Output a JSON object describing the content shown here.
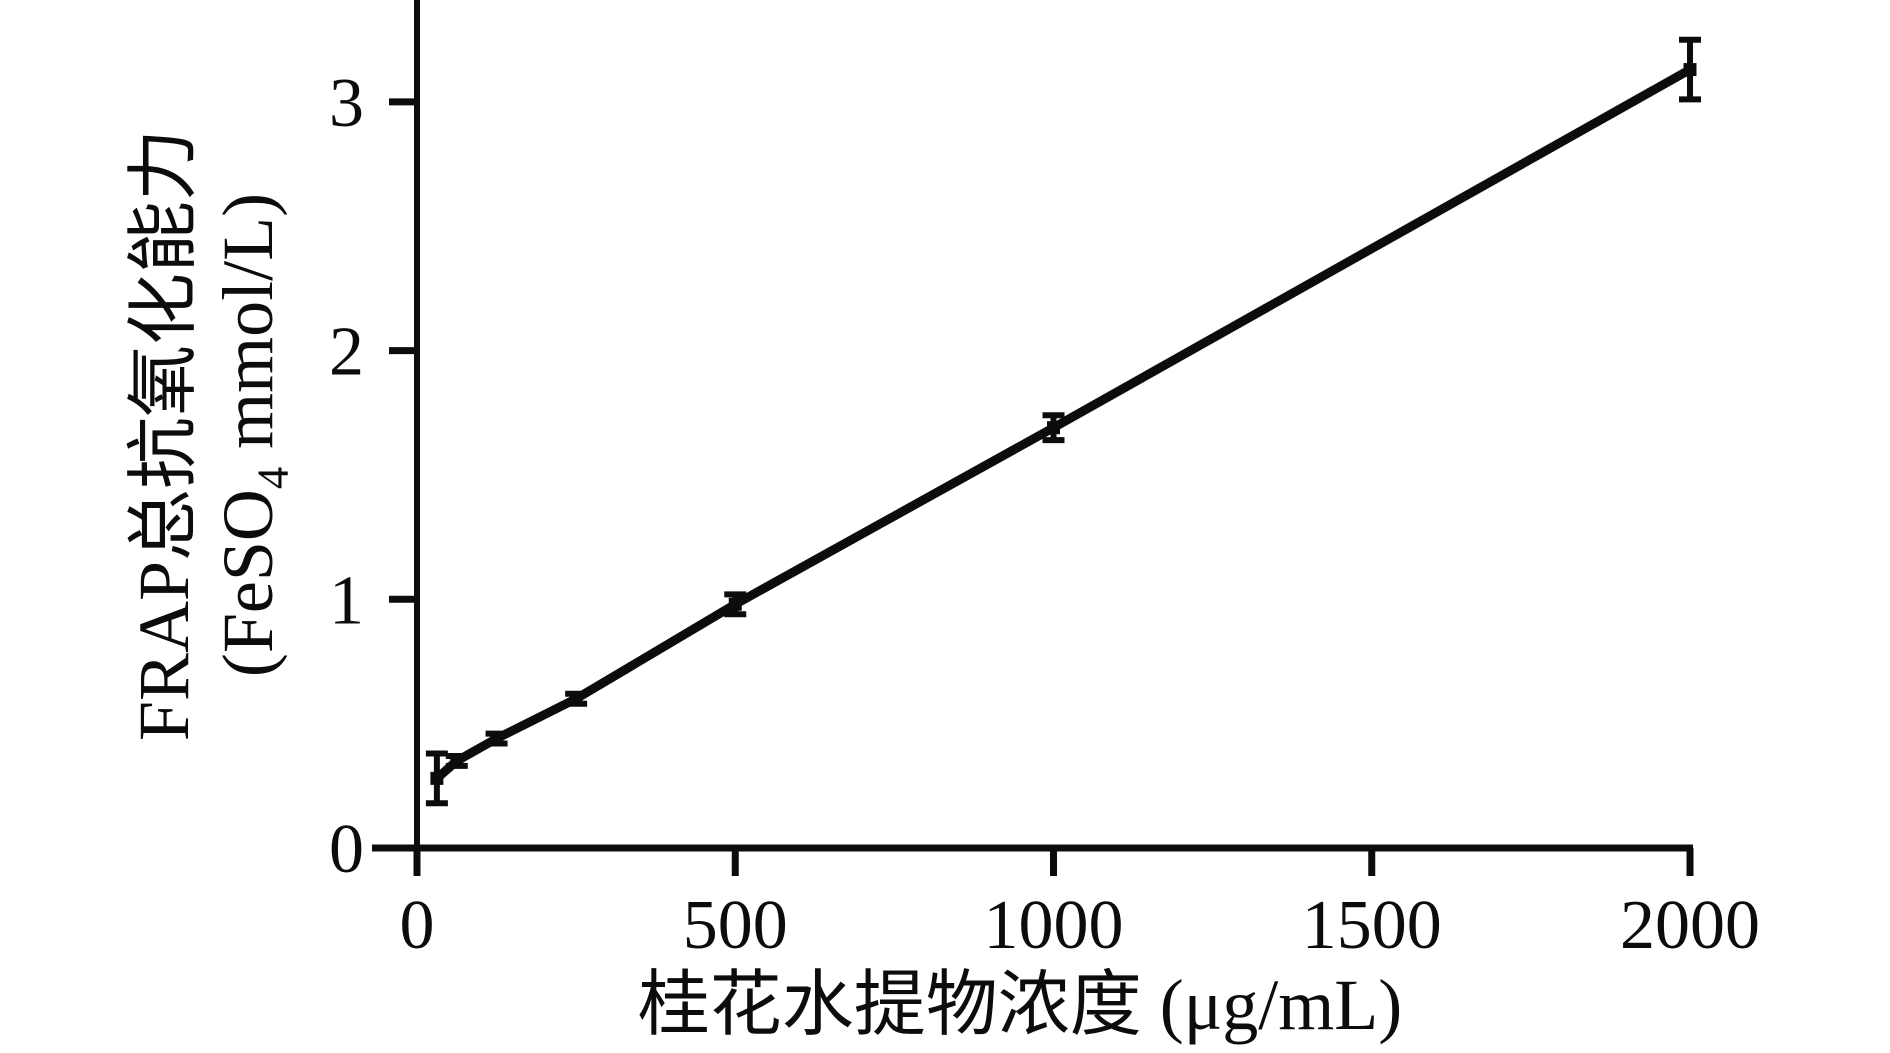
{
  "figure": {
    "background": "#ffffff",
    "ink": "#0c0c0c"
  },
  "chart_data": {
    "type": "line",
    "title": "",
    "xlabel": "桂花水提物浓度 (μg/mL)",
    "ylabel": "FRAP总抗氧化能力 (FeSO4 mmol/L)",
    "ylabel_line1": "FRAP总抗氧化能力",
    "ylabel_line2_prefix": "(FeSO",
    "ylabel_line2_sub": "4",
    "ylabel_line2_suffix": " mmol/L)",
    "series": [
      {
        "x": [
          31.25,
          62.5,
          125,
          250,
          500,
          1000,
          2000
        ],
        "y": [
          0.28,
          0.35,
          0.44,
          0.6,
          0.98,
          1.69,
          3.13
        ],
        "y_err": [
          0.1,
          0.02,
          0.02,
          0.02,
          0.04,
          0.05,
          0.12
        ]
      }
    ],
    "x_ticks": [
      0,
      500,
      1000,
      1500,
      2000
    ],
    "y_ticks": [
      0,
      1,
      2,
      3
    ],
    "xlim": [
      0,
      2000
    ],
    "ylim": [
      0,
      3.4
    ],
    "grid": false,
    "legend": "none",
    "marker": "square",
    "line_color": "#0c0c0c",
    "error_bar_color": "#0c0c0c"
  }
}
